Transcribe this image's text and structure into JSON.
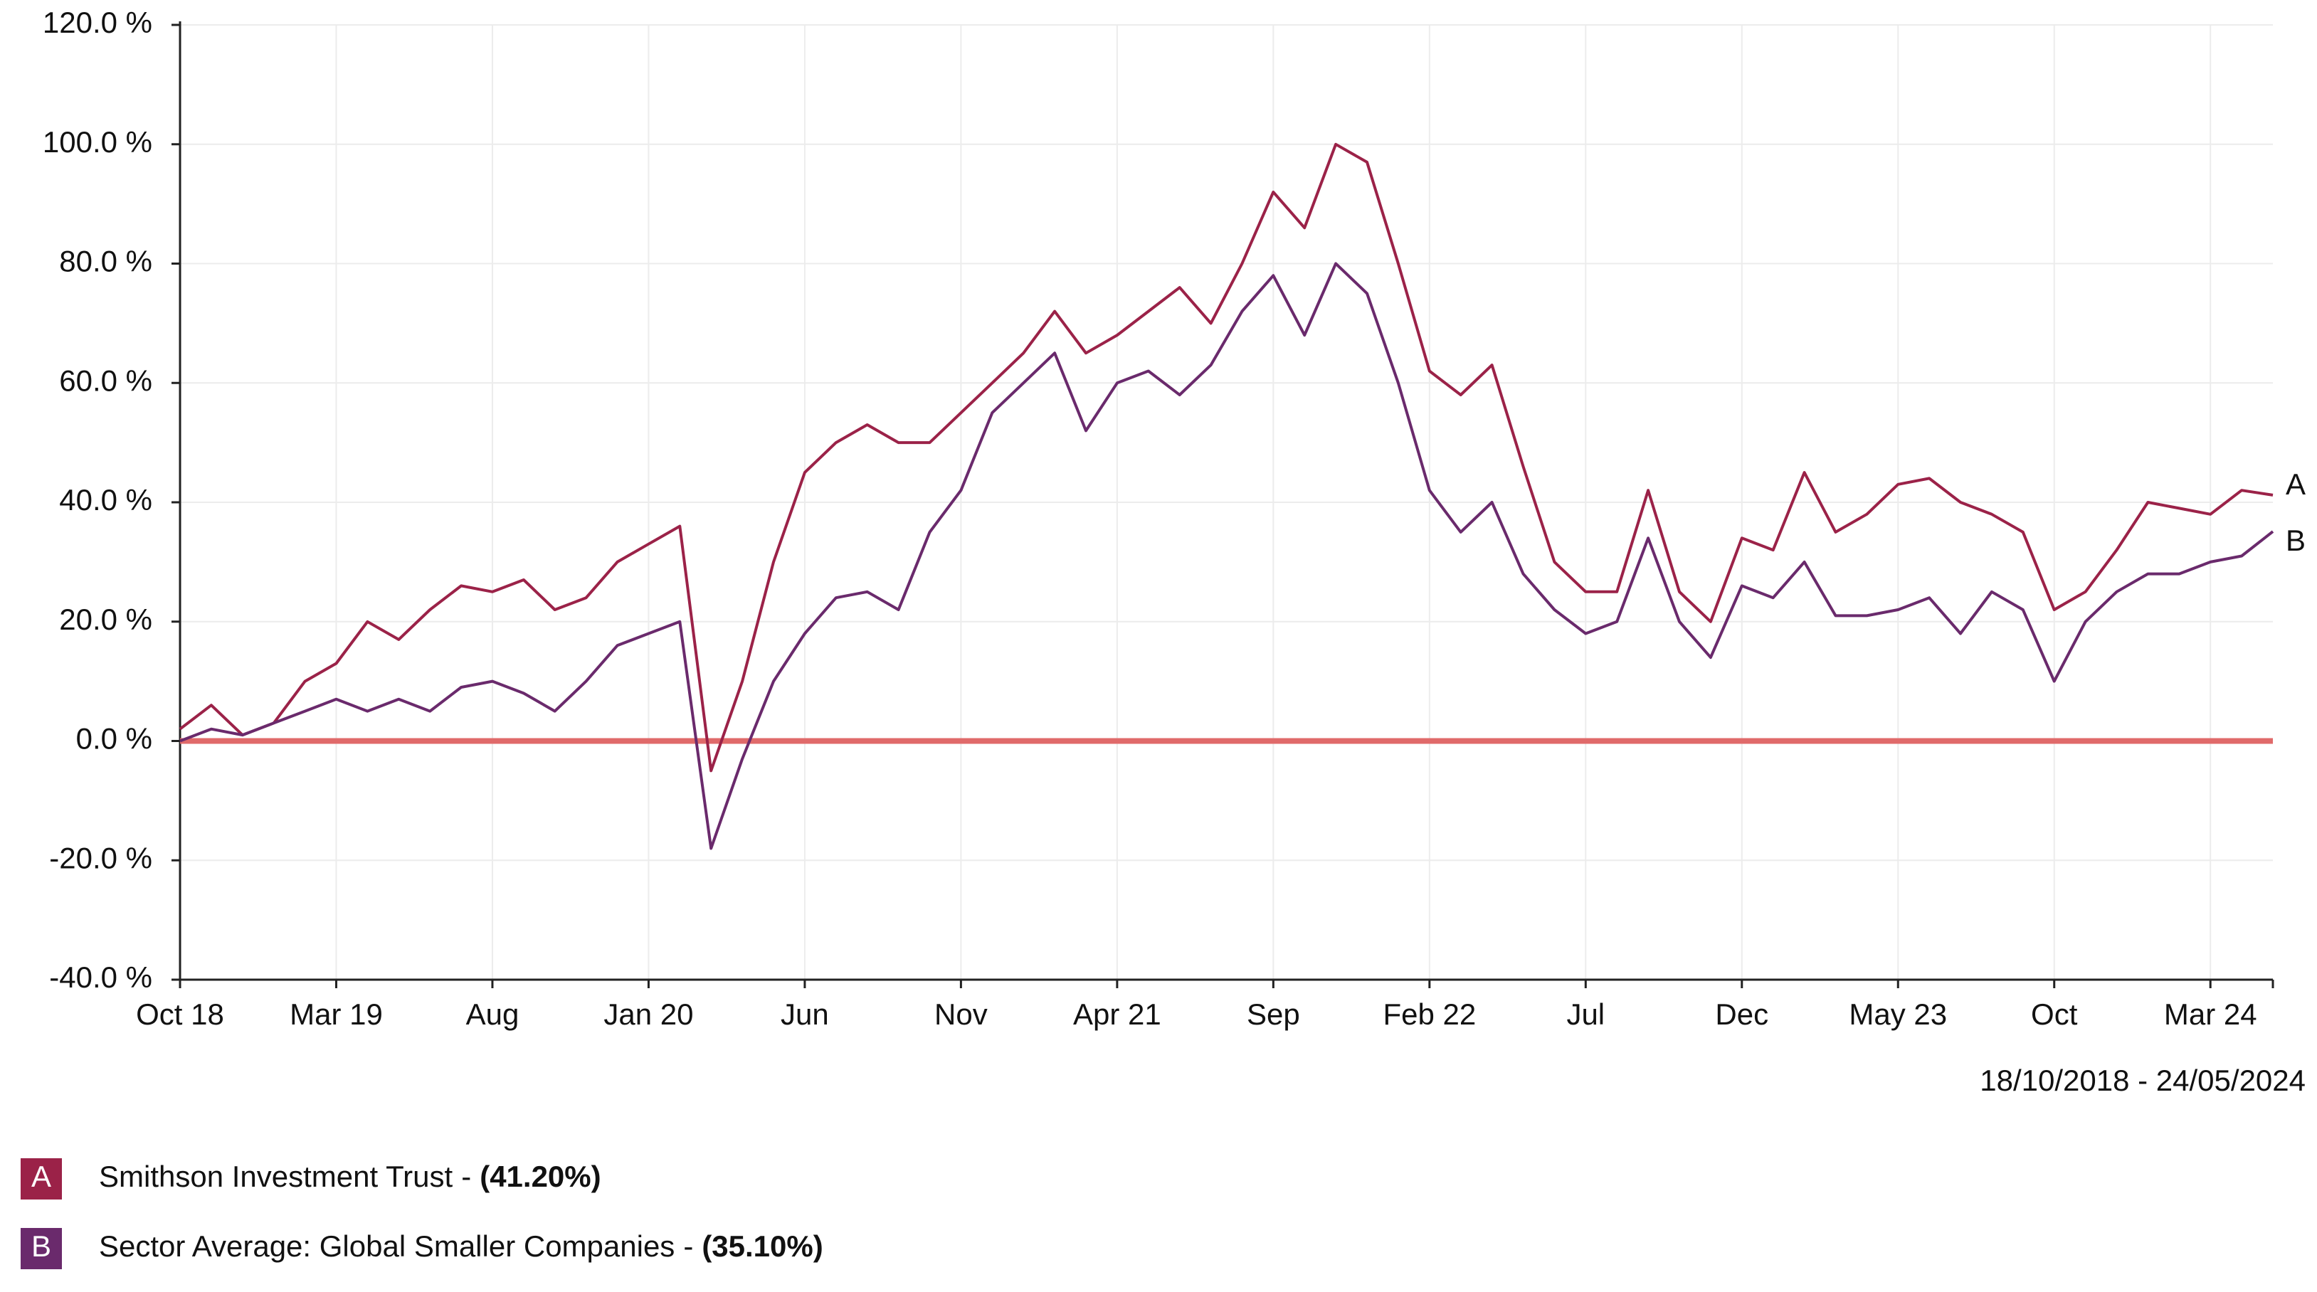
{
  "chart_data": {
    "type": "line",
    "categories": [
      "Oct 18",
      null,
      null,
      null,
      null,
      "Mar 19",
      null,
      null,
      null,
      null,
      "Aug",
      null,
      null,
      null,
      null,
      "Jan 20",
      null,
      null,
      null,
      null,
      "Jun",
      null,
      null,
      null,
      null,
      "Nov",
      null,
      null,
      null,
      null,
      "Apr 21",
      null,
      null,
      null,
      null,
      "Sep",
      null,
      null,
      null,
      null,
      "Feb 22",
      null,
      null,
      null,
      null,
      "Jul",
      null,
      null,
      null,
      null,
      "Dec",
      null,
      null,
      null,
      null,
      "May 23",
      null,
      null,
      null,
      null,
      "Oct",
      null,
      null,
      null,
      null,
      "Mar 24",
      null,
      null
    ],
    "series": [
      {
        "name": "Smithson Investment Trust",
        "marker": "A",
        "legend_value": "(41.20%)",
        "color": "#9b2248",
        "values": [
          2,
          6,
          1,
          3,
          10,
          13,
          20,
          17,
          22,
          26,
          25,
          27,
          22,
          24,
          30,
          33,
          36,
          -5,
          10,
          30,
          45,
          50,
          53,
          50,
          50,
          55,
          60,
          65,
          72,
          65,
          68,
          72,
          76,
          70,
          80,
          92,
          86,
          100,
          97,
          80,
          62,
          58,
          63,
          46,
          30,
          25,
          25,
          42,
          25,
          20,
          34,
          32,
          45,
          35,
          38,
          43,
          44,
          40,
          38,
          35,
          22,
          25,
          32,
          40,
          39,
          38,
          42,
          41.2
        ]
      },
      {
        "name": "Sector Average: Global Smaller Companies",
        "marker": "B",
        "legend_value": "(35.10%)",
        "color": "#6a2a6c",
        "values": [
          0,
          2,
          1,
          3,
          5,
          7,
          5,
          7,
          5,
          9,
          10,
          8,
          5,
          10,
          16,
          18,
          20,
          -18,
          -3,
          10,
          18,
          24,
          25,
          22,
          35,
          42,
          55,
          60,
          65,
          52,
          60,
          62,
          58,
          63,
          72,
          78,
          68,
          80,
          75,
          60,
          42,
          35,
          40,
          28,
          22,
          18,
          20,
          34,
          20,
          14,
          26,
          24,
          30,
          21,
          21,
          22,
          24,
          18,
          25,
          22,
          10,
          20,
          25,
          28,
          28,
          30,
          31,
          35.1
        ]
      }
    ],
    "separator": "-",
    "ylim": [
      -40,
      120
    ],
    "yticks": [
      {
        "value": -40,
        "label": "-40.0 %"
      },
      {
        "value": -20,
        "label": "-20.0 %"
      },
      {
        "value": 0,
        "label": "0.0 %"
      },
      {
        "value": 20,
        "label": "20.0 %"
      },
      {
        "value": 40,
        "label": "40.0 %"
      },
      {
        "value": 60,
        "label": "60.0 %"
      },
      {
        "value": 80,
        "label": "80.0 %"
      },
      {
        "value": 100,
        "label": "100.0 %"
      },
      {
        "value": 120,
        "label": "120.0 %"
      }
    ],
    "date_range": "18/10/2018 - 24/05/2024",
    "grid": true,
    "baseline_color": "#e06a6a"
  }
}
